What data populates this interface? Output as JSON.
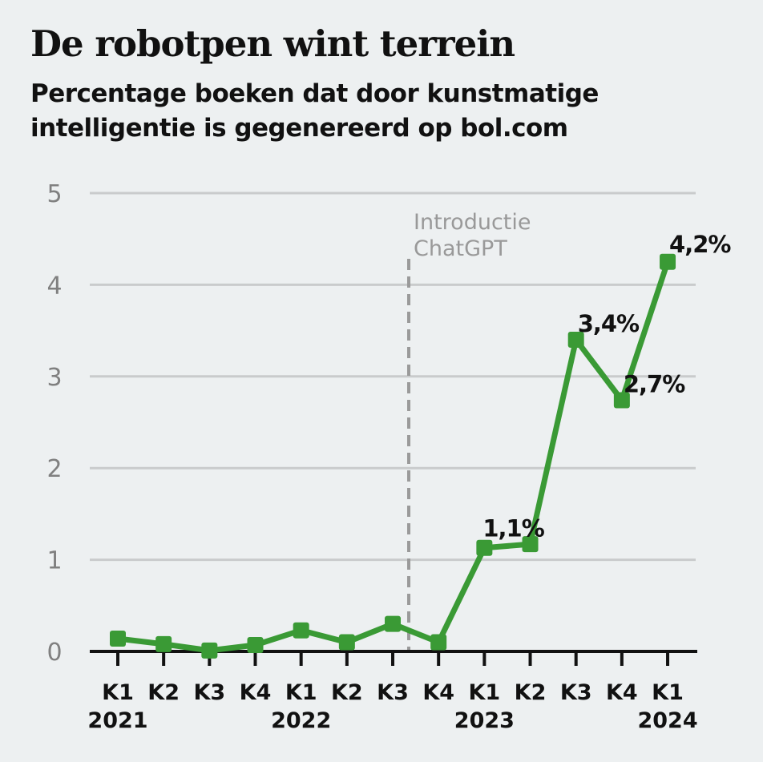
{
  "chart_data": {
    "type": "line",
    "title": "De robotpen wint terrein",
    "subtitle": "Percentage boeken dat door kunstmatige intelligentie is gegenereerd op bol.com",
    "categories": [
      "K1",
      "K2",
      "K3",
      "K4",
      "K1",
      "K2",
      "K3",
      "K4",
      "K1",
      "K2",
      "K3",
      "K4",
      "K1"
    ],
    "year_labels": {
      "0": "2021",
      "4": "2022",
      "8": "2023",
      "12": "2024"
    },
    "series": [
      {
        "values": [
          0.14,
          0.08,
          0.01,
          0.07,
          0.23,
          0.1,
          0.3,
          0.1,
          1.13,
          1.17,
          3.4,
          2.74,
          4.25
        ],
        "color": "#3a9a35"
      }
    ],
    "data_labels": {
      "8": "1,1%",
      "10": "3,4%",
      "11": "2,7%",
      "12": "4,2%"
    },
    "ylim": [
      0,
      5
    ],
    "yticks": [
      "0",
      "1",
      "2",
      "3",
      "4",
      "5"
    ],
    "grid": true,
    "annotation": {
      "text_lines": [
        "Introductie",
        "ChatGPT"
      ],
      "position_index": 6.35,
      "color": "#999999"
    }
  }
}
